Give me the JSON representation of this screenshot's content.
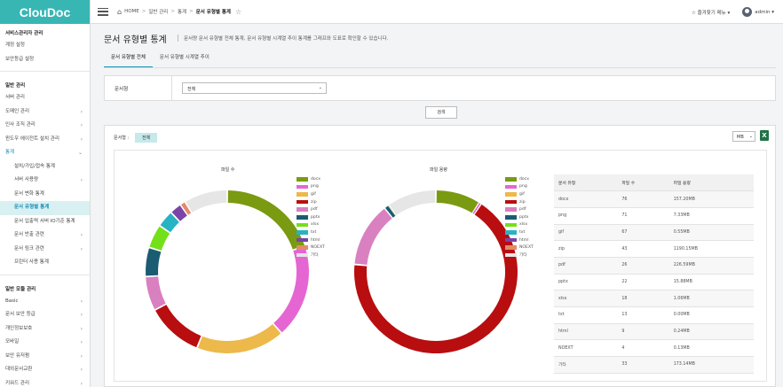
{
  "app": {
    "logo": "ClouDoc"
  },
  "sidebar": {
    "group1": "서비스관리자 관리",
    "g1_items": [
      "계정 설정",
      "보안등급 설정"
    ],
    "group2": "일반 관리",
    "g2_items": [
      {
        "label": "서버 관리",
        "chev": false
      },
      {
        "label": "도메인 관리",
        "chev": true
      },
      {
        "label": "인사 조직 관리",
        "chev": true
      },
      {
        "label": "윈도우 에이전트 설치 관리",
        "chev": true
      },
      {
        "label": "통계",
        "chev": true,
        "open": true
      }
    ],
    "stats_sub": [
      {
        "label": "설치/가입/접속 통계"
      },
      {
        "label": "서버 사용량",
        "chev": true
      },
      {
        "label": "문서 변화 통계"
      },
      {
        "label": "문서 유형별 통계",
        "active": true
      },
      {
        "label": "문서 입출력 서버 IO기준 통계"
      },
      {
        "label": "문서 반출 관련",
        "chev": true
      },
      {
        "label": "문서 링크 관련",
        "chev": true
      },
      {
        "label": "프린터 사용 통계"
      }
    ],
    "group3": "일반 모듈 관리",
    "g3_items": [
      {
        "label": "Basic",
        "chev": true
      },
      {
        "label": "문서 보안 등급",
        "chev": true
      },
      {
        "label": "개인정보보호",
        "chev": true
      },
      {
        "label": "모바일",
        "chev": true
      },
      {
        "label": "보안 유저펌",
        "chev": true
      },
      {
        "label": "대외문서교환",
        "chev": true
      },
      {
        "label": "키워드 관리",
        "chev": true
      }
    ]
  },
  "topbar": {
    "home": "HOME",
    "crumbs": [
      "일반 관리",
      "통계"
    ],
    "current": "문서 유형별 통계",
    "favorites": "즐겨찾기 메뉴",
    "user": "admin"
  },
  "page": {
    "title": "문서 유형별 통계",
    "desc": "문서량 문서 유형별 전체 통계, 문서 유형별 시계열 추이 통계를 그래프와 도표로 확인할 수 있습니다.",
    "tabs": [
      "문서 유형별 전체",
      "문서 유형별 시계열 추이"
    ]
  },
  "filter": {
    "label": "문서형",
    "value": "전체",
    "search": "검색"
  },
  "panel": {
    "filter_label": "문서형 :",
    "badge": "전체",
    "unit": "MB",
    "excel": "X"
  },
  "colors": {
    "docx": "#7a9a12",
    "png": "#e566d2",
    "gif": "#ecb94a",
    "zip": "#b80e10",
    "pdf": "#d980c0",
    "pptx": "#1b5c72",
    "xlsx": "#74e019",
    "txt": "#27b3c2",
    "html": "#7a44a8",
    "NOEXT": "#e38a6a",
    "기타": "#e6e6e6"
  },
  "chart_data": [
    {
      "type": "pie",
      "title": "파일 수",
      "categories": [
        "docx",
        "png",
        "gif",
        "zip",
        "pdf",
        "pptx",
        "xlsx",
        "txt",
        "html",
        "NOEXT",
        "기타"
      ],
      "values": [
        76,
        71,
        67,
        43,
        26,
        22,
        18,
        13,
        9,
        4,
        33
      ]
    },
    {
      "type": "pie",
      "title": "파일 용량",
      "categories": [
        "docx",
        "png",
        "gif",
        "zip",
        "pdf",
        "pptx",
        "xlsx",
        "txt",
        "html",
        "NOEXT",
        "기타"
      ],
      "values": [
        157.2,
        7.33,
        0.55,
        1190.15,
        226.59,
        15.88,
        1.06,
        0.0,
        0.24,
        0.13,
        173.14
      ]
    }
  ],
  "table": {
    "headers": [
      "문서 유형",
      "파일 수",
      "파일 용량"
    ],
    "rows": [
      [
        "docx",
        "76",
        "157.20MB"
      ],
      [
        "png",
        "71",
        "7.33MB"
      ],
      [
        "gif",
        "67",
        "0.55MB"
      ],
      [
        "zip",
        "43",
        "1190.15MB"
      ],
      [
        "pdf",
        "26",
        "226.59MB"
      ],
      [
        "pptx",
        "22",
        "15.88MB"
      ],
      [
        "xlsx",
        "18",
        "1.06MB"
      ],
      [
        "txt",
        "13",
        "0.00MB"
      ],
      [
        "html",
        "9",
        "0.24MB"
      ],
      [
        "NOEXT",
        "4",
        "0.13MB"
      ],
      [
        "기타",
        "33",
        "173.14MB"
      ]
    ]
  }
}
